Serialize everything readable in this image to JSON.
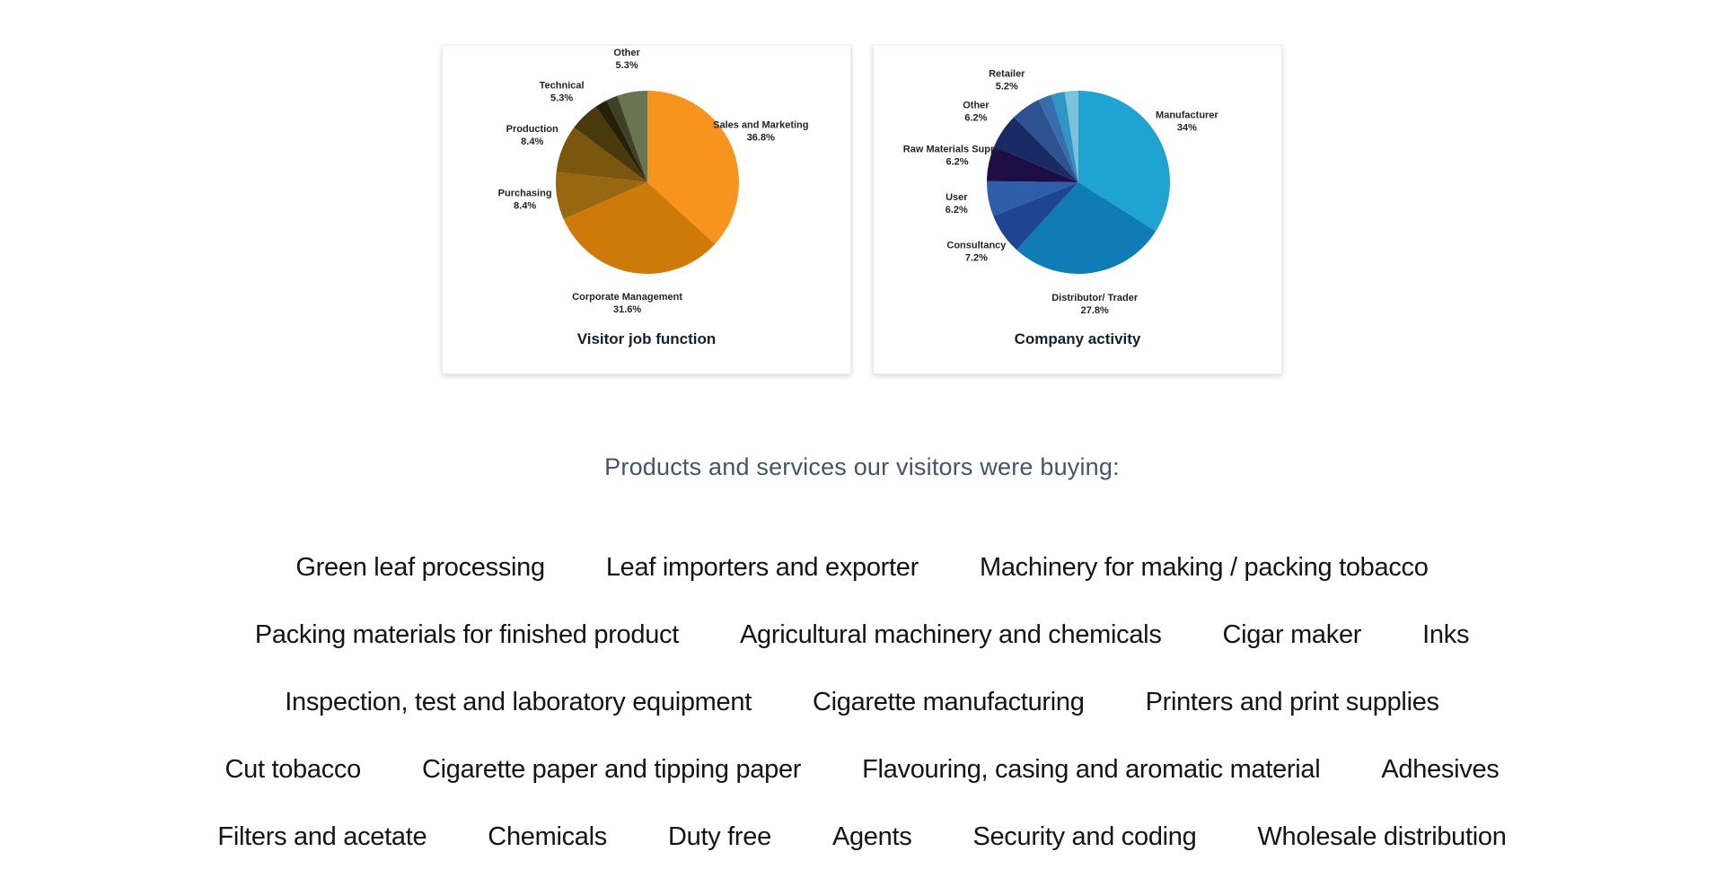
{
  "section_heading": {
    "text": "Products and services our visitors were buying:",
    "color": "#44546A"
  },
  "chart_data": [
    {
      "type": "pie",
      "title": "Visitor job function",
      "legend_position": "none",
      "labels_outside": true,
      "slices": [
        {
          "label": "Sales and Marketing",
          "pct": "36.8%",
          "value": 36.8,
          "color": "#F7941E"
        },
        {
          "label": "Corporate Management",
          "pct": "31.6%",
          "value": 31.6,
          "color": "#CE7A0A"
        },
        {
          "label": "Purchasing",
          "pct": "8.4%",
          "value": 8.4,
          "color": "#97680F"
        },
        {
          "label": "Production",
          "pct": "8.4%",
          "value": 8.4,
          "color": "#7B560E"
        },
        {
          "label": "Technical",
          "pct": "5.3%",
          "value": 5.3,
          "color": "#4A390C"
        },
        {
          "label": "",
          "pct": "",
          "value": 2.1,
          "color": "#262007"
        },
        {
          "label": "",
          "pct": "",
          "value": 2.1,
          "color": "#3F4126"
        },
        {
          "label": "Other",
          "pct": "5.3%",
          "value": 5.3,
          "color": "#68754F"
        }
      ]
    },
    {
      "type": "pie",
      "title": "Company activity",
      "legend_position": "none",
      "labels_outside": true,
      "slices": [
        {
          "label": "Manufacturer",
          "pct": "34%",
          "value": 34,
          "color": "#1FA3D1"
        },
        {
          "label": "Distributor/ Trader",
          "pct": "27.8%",
          "value": 27.8,
          "color": "#0F7CB5"
        },
        {
          "label": "Consultancy",
          "pct": "7.2%",
          "value": 7.2,
          "color": "#1F4590"
        },
        {
          "label": "User",
          "pct": "6.2%",
          "value": 6.2,
          "color": "#2E5DA9"
        },
        {
          "label": "Raw Materials Supplier",
          "pct": "6.2%",
          "value": 6.2,
          "color": "#1C0E45"
        },
        {
          "label": "Other",
          "pct": "6.2%",
          "value": 6.2,
          "color": "#1A2A64"
        },
        {
          "label": "Retailer",
          "pct": "5.2%",
          "value": 5.2,
          "color": "#2E5191"
        },
        {
          "label": "",
          "pct": "",
          "value": 2.4,
          "color": "#3A6DAD"
        },
        {
          "label": "",
          "pct": "",
          "value": 2.4,
          "color": "#2F96C5"
        },
        {
          "label": "",
          "pct": "",
          "value": 2.4,
          "color": "#7BC3DA"
        }
      ]
    }
  ],
  "products": {
    "rows": [
      [
        "Green leaf processing",
        "Leaf importers and exporter",
        "Machinery for making / packing tobacco"
      ],
      [
        "Packing materials for finished product",
        "Agricultural machinery and chemicals",
        "Cigar maker",
        "Inks"
      ],
      [
        "Inspection, test and laboratory equipment",
        "Cigarette manufacturing",
        "Printers and print supplies"
      ],
      [
        "Cut tobacco",
        "Cigarette paper and tipping paper",
        "Flavouring, casing and aromatic material",
        "Adhesives"
      ],
      [
        "Filters and acetate",
        "Chemicals",
        "Duty free",
        "Agents",
        "Security and coding",
        "Wholesale distribution"
      ]
    ]
  }
}
